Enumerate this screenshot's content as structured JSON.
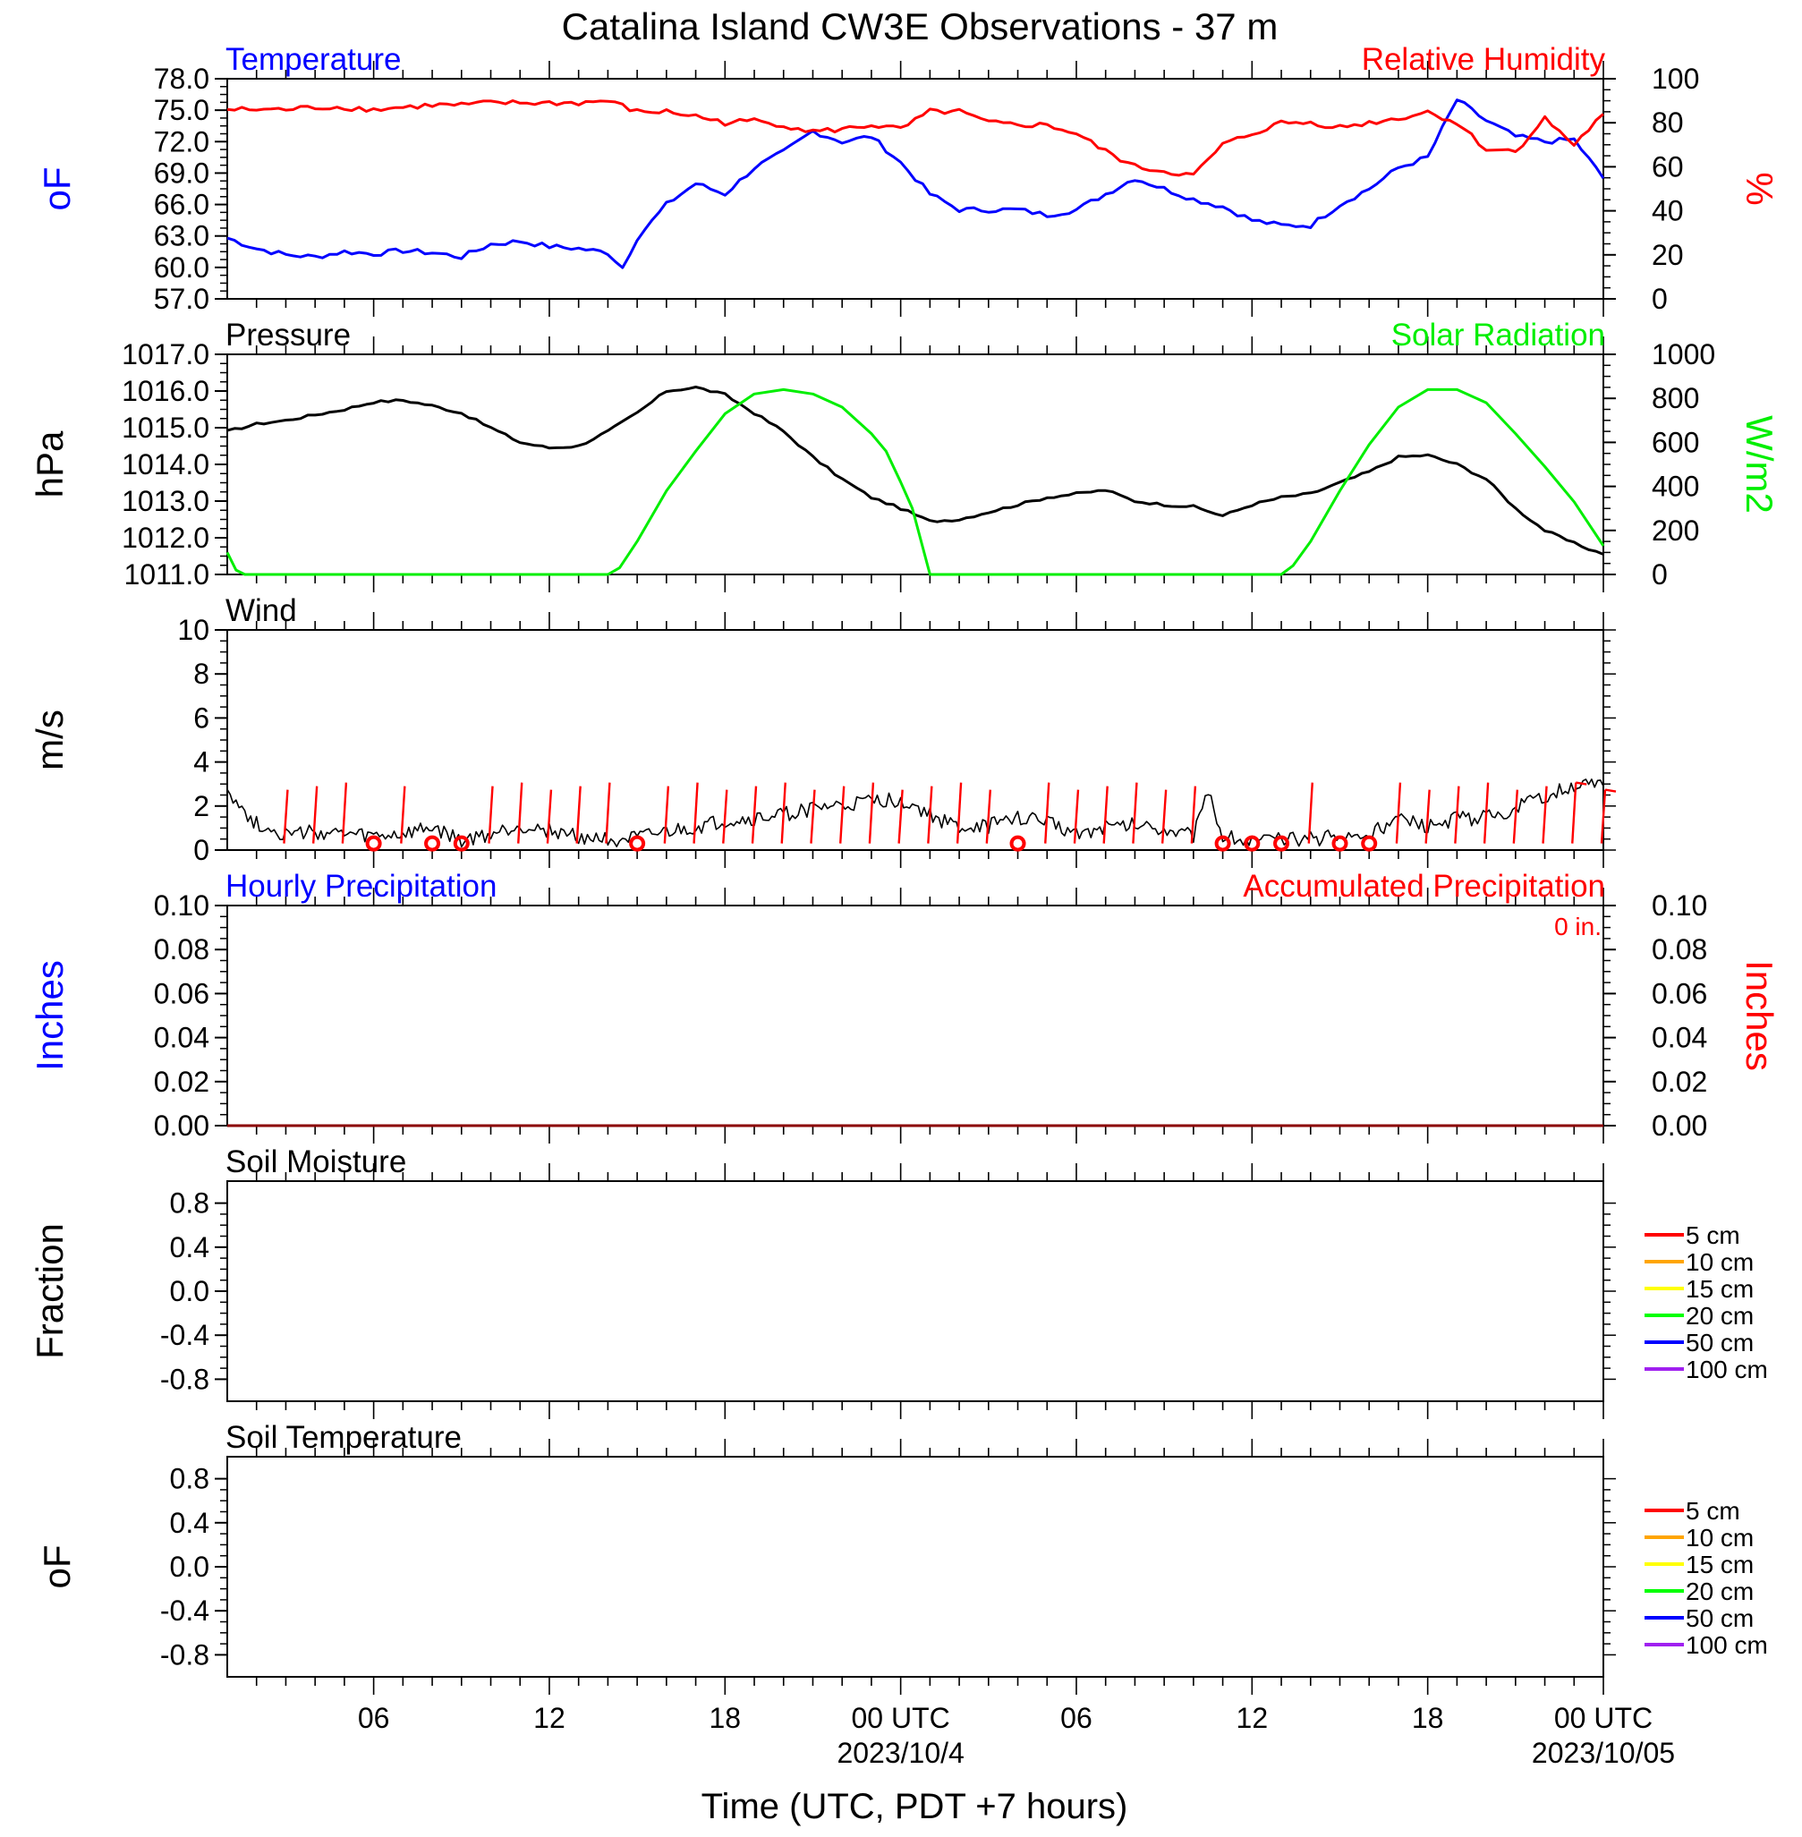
{
  "title": "Catalina Island CW3E Observations - 37 m",
  "xaxis": {
    "label": "Time (UTC, PDT +7 hours)",
    "ticks": [
      {
        "hour": 6,
        "label": "06"
      },
      {
        "hour": 12,
        "label": "12"
      },
      {
        "hour": 18,
        "label": "18"
      },
      {
        "hour": 24,
        "label": "00 UTC"
      },
      {
        "hour": 30,
        "label": "06"
      },
      {
        "hour": 36,
        "label": "12"
      },
      {
        "hour": 42,
        "label": "18"
      },
      {
        "hour": 48,
        "label": "00 UTC"
      }
    ],
    "dates": [
      {
        "hour": 24,
        "label": "2023/10/4"
      },
      {
        "hour": 48,
        "label": "2023/10/05"
      }
    ],
    "range_hours": [
      1,
      48
    ]
  },
  "colors": {
    "temperature": "#0000ff",
    "humidity": "#ff0000",
    "pressure": "#000000",
    "solar": "#00ee00",
    "wind": "#000000",
    "barb": "#ff0000",
    "precip": "#8b0000"
  },
  "chart_data": [
    {
      "type": "line",
      "title_left": "Temperature",
      "title_right": "Relative Humidity",
      "ylabel_left": "oF",
      "ylabel_right": "%",
      "ylim_left": [
        57,
        78
      ],
      "ylim_right": [
        0,
        100
      ],
      "yticks_left": [
        "57.0",
        "60.0",
        "63.0",
        "66.0",
        "69.0",
        "72.0",
        "75.0",
        "78.0"
      ],
      "yticks_right": [
        "0",
        "20",
        "40",
        "60",
        "80",
        "100"
      ],
      "series": [
        {
          "name": "Temperature",
          "axis": "left",
          "x": [
            1,
            2,
            3,
            4,
            5,
            6,
            7,
            8,
            9,
            10,
            11,
            12,
            13,
            14,
            14.5,
            15,
            16,
            17,
            18,
            19,
            20,
            21,
            22,
            23,
            24,
            25,
            26,
            27,
            28,
            29,
            30,
            31,
            32,
            33,
            34,
            35,
            36,
            37,
            38,
            39,
            40,
            41,
            42,
            43,
            44,
            45,
            46,
            47,
            48
          ],
          "y": [
            62.8,
            61.8,
            61.2,
            61.0,
            61.5,
            61.3,
            61.6,
            61.4,
            61.0,
            62.2,
            62.5,
            62.0,
            61.8,
            61.4,
            60.0,
            62.8,
            66.0,
            68.0,
            67.0,
            69.5,
            71.0,
            73.0,
            72.0,
            72.5,
            70.0,
            67.0,
            65.5,
            65.5,
            65.5,
            65.0,
            65.5,
            67.0,
            68.5,
            67.5,
            66.5,
            65.8,
            64.5,
            64.0,
            64.0,
            66.0,
            67.5,
            69.5,
            70.5,
            76.0,
            74.0,
            72.5,
            72.0,
            72.2,
            68.5
          ]
        },
        {
          "name": "Relative Humidity",
          "axis": "right",
          "x": [
            1,
            2,
            3,
            4,
            5,
            6,
            7,
            8,
            9,
            10,
            11,
            12,
            13,
            14,
            15,
            16,
            17,
            18,
            19,
            20,
            21,
            22,
            23,
            24,
            25,
            26,
            27,
            28,
            29,
            30,
            31,
            32,
            33,
            34,
            35,
            36,
            37,
            38,
            39,
            40,
            41,
            42,
            43,
            44,
            45,
            46,
            47,
            48
          ],
          "y": [
            86,
            86,
            86,
            87,
            87,
            86,
            87,
            88,
            88,
            89,
            89,
            89,
            89,
            90,
            85,
            85,
            83,
            80,
            81,
            79,
            76,
            77,
            79,
            77,
            85,
            85,
            80,
            79,
            79,
            75,
            67,
            60,
            58,
            56,
            70,
            75,
            80,
            80,
            78,
            80,
            82,
            85,
            80,
            68,
            67,
            82,
            70,
            84
          ]
        }
      ]
    },
    {
      "type": "line",
      "title_left": "Pressure",
      "title_right": "Solar Radiation",
      "ylabel_left": "hPa",
      "ylabel_right": "W/m2",
      "ylim_left": [
        1011,
        1017
      ],
      "ylim_right": [
        0,
        1000
      ],
      "yticks_left": [
        "1011.0",
        "1012.0",
        "1013.0",
        "1014.0",
        "1015.0",
        "1016.0",
        "1017.0"
      ],
      "yticks_right": [
        "0",
        "200",
        "400",
        "600",
        "800",
        "1000"
      ],
      "series": [
        {
          "name": "Pressure",
          "axis": "left",
          "x": [
            1,
            2,
            3,
            4,
            5,
            6,
            7,
            8,
            9,
            10,
            11,
            12,
            13,
            14,
            15,
            16,
            17,
            18,
            19,
            20,
            21,
            22,
            23,
            24,
            25,
            26,
            27,
            28,
            29,
            30,
            31,
            32,
            33,
            34,
            35,
            36,
            37,
            38,
            39,
            40,
            41,
            42,
            43,
            44,
            45,
            46,
            47,
            48
          ],
          "y": [
            1014.9,
            1015.1,
            1015.2,
            1015.35,
            1015.5,
            1015.7,
            1015.75,
            1015.6,
            1015.4,
            1015.0,
            1014.6,
            1014.45,
            1014.5,
            1014.9,
            1015.4,
            1016.0,
            1016.1,
            1015.9,
            1015.4,
            1014.9,
            1014.2,
            1013.6,
            1013.1,
            1012.8,
            1012.45,
            1012.5,
            1012.7,
            1012.9,
            1013.1,
            1013.2,
            1013.3,
            1013.0,
            1012.9,
            1012.85,
            1012.6,
            1012.9,
            1013.1,
            1013.2,
            1013.5,
            1013.8,
            1014.2,
            1014.25,
            1014.0,
            1013.6,
            1012.8,
            1012.2,
            1011.85,
            1011.55
          ]
        },
        {
          "name": "Solar Radiation",
          "axis": "right",
          "x": [
            1,
            1.3,
            1.6,
            2,
            14,
            14.4,
            15,
            16,
            17,
            18,
            19,
            20,
            21,
            22,
            23,
            23.5,
            24,
            24.4,
            25,
            37,
            37.4,
            38,
            39,
            40,
            41,
            42,
            43,
            44,
            45,
            46,
            47,
            48
          ],
          "y": [
            100,
            20,
            0,
            0,
            0,
            30,
            150,
            380,
            560,
            730,
            820,
            840,
            820,
            760,
            640,
            560,
            420,
            300,
            0,
            0,
            40,
            150,
            380,
            590,
            760,
            840,
            840,
            780,
            640,
            490,
            330,
            130
          ]
        }
      ]
    },
    {
      "type": "line",
      "title_left": "Wind",
      "ylabel_left": "m/s",
      "ylim_left": [
        0,
        10
      ],
      "yticks_left": [
        "0",
        "2",
        "4",
        "6",
        "8",
        "10"
      ],
      "series": [
        {
          "name": "Wind",
          "axis": "left",
          "x": [
            1,
            1.5,
            2,
            3,
            4,
            5,
            6,
            7,
            8,
            9,
            10,
            11,
            12,
            13,
            14,
            15,
            16,
            17,
            18,
            19,
            20,
            21,
            22,
            23,
            24,
            25,
            26,
            27,
            28,
            29,
            30,
            31,
            32,
            33,
            34,
            34.5,
            35,
            36,
            37,
            38,
            39,
            40,
            41,
            42,
            43,
            44,
            45,
            46,
            47,
            48
          ],
          "y": [
            2.9,
            1.8,
            1.2,
            0.7,
            0.8,
            0.7,
            0.6,
            0.7,
            1.0,
            0.4,
            0.7,
            1.1,
            0.9,
            0.6,
            0.5,
            0.5,
            0.8,
            1.0,
            1.3,
            1.4,
            1.6,
            1.9,
            2.0,
            2.2,
            2.3,
            1.6,
            1.0,
            1.1,
            1.5,
            1.3,
            0.8,
            1.0,
            1.2,
            1.0,
            0.7,
            2.5,
            0.7,
            0.4,
            0.5,
            0.5,
            0.6,
            0.7,
            1.4,
            1.0,
            1.4,
            1.5,
            1.9,
            2.4,
            3.0,
            2.9
          ]
        }
      ],
      "barbs": [
        {
          "hour": 3,
          "calm": false,
          "mark": "short"
        },
        {
          "hour": 4,
          "calm": false,
          "mark": "short"
        },
        {
          "hour": 5,
          "calm": false,
          "mark": "short"
        },
        {
          "hour": 6,
          "calm": true
        },
        {
          "hour": 7,
          "calm": false,
          "mark": "short"
        },
        {
          "hour": 8,
          "calm": true
        },
        {
          "hour": 9,
          "calm": true
        },
        {
          "hour": 10,
          "calm": false,
          "mark": "short"
        },
        {
          "hour": 11,
          "calm": false,
          "mark": "short"
        },
        {
          "hour": 12,
          "calm": false,
          "mark": "short"
        },
        {
          "hour": 13,
          "calm": false,
          "mark": "short"
        },
        {
          "hour": 14,
          "calm": false,
          "mark": "short"
        },
        {
          "hour": 15,
          "calm": true
        },
        {
          "hour": 16,
          "calm": false,
          "mark": "short"
        },
        {
          "hour": 17,
          "calm": false,
          "mark": "short"
        },
        {
          "hour": 18,
          "calm": false,
          "mark": "short"
        },
        {
          "hour": 19,
          "calm": false,
          "mark": "short"
        },
        {
          "hour": 20,
          "calm": false,
          "mark": "short"
        },
        {
          "hour": 21,
          "calm": false,
          "mark": "short"
        },
        {
          "hour": 22,
          "calm": false,
          "mark": "short"
        },
        {
          "hour": 23,
          "calm": false,
          "mark": "short"
        },
        {
          "hour": 24,
          "calm": false,
          "mark": "short"
        },
        {
          "hour": 25,
          "calm": false,
          "mark": "short"
        },
        {
          "hour": 26,
          "calm": false,
          "mark": "short"
        },
        {
          "hour": 27,
          "calm": false,
          "mark": "short"
        },
        {
          "hour": 28,
          "calm": true
        },
        {
          "hour": 29,
          "calm": false,
          "mark": "short"
        },
        {
          "hour": 30,
          "calm": false,
          "mark": "short"
        },
        {
          "hour": 31,
          "calm": false,
          "mark": "short"
        },
        {
          "hour": 32,
          "calm": false,
          "mark": "short"
        },
        {
          "hour": 33,
          "calm": false,
          "mark": "short"
        },
        {
          "hour": 34,
          "calm": false,
          "mark": "short"
        },
        {
          "hour": 35,
          "calm": true
        },
        {
          "hour": 36,
          "calm": true
        },
        {
          "hour": 37,
          "calm": true
        },
        {
          "hour": 38,
          "calm": false,
          "mark": "short"
        },
        {
          "hour": 39,
          "calm": true
        },
        {
          "hour": 40,
          "calm": true
        },
        {
          "hour": 41,
          "calm": false,
          "mark": "short"
        },
        {
          "hour": 42,
          "calm": false,
          "mark": "short"
        },
        {
          "hour": 43,
          "calm": false,
          "mark": "short"
        },
        {
          "hour": 44,
          "calm": false,
          "mark": "short"
        },
        {
          "hour": 45,
          "calm": false,
          "mark": "short"
        },
        {
          "hour": 46,
          "calm": false,
          "mark": "short"
        },
        {
          "hour": 47,
          "calm": false,
          "mark": "flag"
        },
        {
          "hour": 48,
          "calm": false,
          "mark": "flag"
        }
      ]
    },
    {
      "type": "line",
      "title_left": "Hourly Precipitation",
      "title_right": "Accumulated Precipitation",
      "annotation": "0 in.",
      "ylabel_left": "Inches",
      "ylabel_right": "Inches",
      "ylim_left": [
        0,
        0.1
      ],
      "ylim_right": [
        0,
        0.1
      ],
      "yticks_left": [
        "0.00",
        "0.02",
        "0.04",
        "0.06",
        "0.08",
        "0.10"
      ],
      "yticks_right": [
        "0.00",
        "0.02",
        "0.04",
        "0.06",
        "0.08",
        "0.10"
      ],
      "series": [
        {
          "name": "Accumulated Precipitation",
          "axis": "left",
          "x": [
            1,
            48
          ],
          "y": [
            0,
            0
          ]
        }
      ]
    },
    {
      "type": "line",
      "title_left": "Soil Moisture",
      "ylabel_left": "Fraction",
      "ylim_left": [
        -1,
        1
      ],
      "yticks_left": [
        "-0.8",
        "-0.4",
        "0.0",
        "0.4",
        "0.8"
      ],
      "legend": [
        {
          "label": "5 cm",
          "color": "#ff0000"
        },
        {
          "label": "10 cm",
          "color": "#ffa500"
        },
        {
          "label": "15 cm",
          "color": "#ffff00"
        },
        {
          "label": "20 cm",
          "color": "#00ff00"
        },
        {
          "label": "50 cm",
          "color": "#0000ff"
        },
        {
          "label": "100 cm",
          "color": "#a020f0"
        }
      ],
      "series": []
    },
    {
      "type": "line",
      "title_left": "Soil Temperature",
      "ylabel_left": "oF",
      "ylim_left": [
        -1,
        1
      ],
      "yticks_left": [
        "-0.8",
        "-0.4",
        "0.0",
        "0.4",
        "0.8"
      ],
      "legend": [
        {
          "label": "5 cm",
          "color": "#ff0000"
        },
        {
          "label": "10 cm",
          "color": "#ffa500"
        },
        {
          "label": "15 cm",
          "color": "#ffff00"
        },
        {
          "label": "20 cm",
          "color": "#00ff00"
        },
        {
          "label": "50 cm",
          "color": "#0000ff"
        },
        {
          "label": "100 cm",
          "color": "#a020f0"
        }
      ],
      "series": []
    }
  ]
}
